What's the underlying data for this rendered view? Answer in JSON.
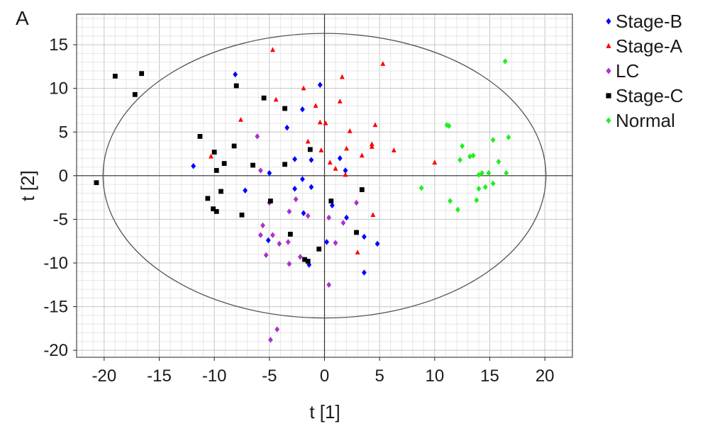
{
  "panel_label": "A",
  "chart_data": {
    "type": "scatter",
    "title": "",
    "xlabel": "t [1]",
    "ylabel": "t [2]",
    "xlim": [
      -22.5,
      22.5
    ],
    "ylim": [
      -20.8,
      18.5
    ],
    "xticks": [
      -20,
      -15,
      -10,
      -5,
      0,
      5,
      10,
      15,
      20
    ],
    "yticks": [
      15,
      10,
      5,
      0,
      -5,
      -10,
      -15,
      -20
    ],
    "grid": true,
    "legend_position": "right",
    "confidence_ellipse": {
      "rx": 20.1,
      "ry": 16.3
    },
    "series": [
      {
        "name": "Stage-B",
        "color": "#0000ff",
        "marker": "diamond",
        "points": [
          [
            -8.1,
            11.6
          ],
          [
            -0.4,
            10.4
          ],
          [
            -2.0,
            7.6
          ],
          [
            -3.4,
            5.5
          ],
          [
            -11.9,
            1.1
          ],
          [
            -2.7,
            1.9
          ],
          [
            -1.2,
            1.8
          ],
          [
            1.4,
            2.0
          ],
          [
            1.9,
            0.6
          ],
          [
            -5.0,
            0.3
          ],
          [
            -2.0,
            -0.4
          ],
          [
            -7.2,
            -1.7
          ],
          [
            -2.7,
            -1.5
          ],
          [
            -1.2,
            -1.3
          ],
          [
            -1.9,
            -4.3
          ],
          [
            0.7,
            -3.4
          ],
          [
            2.0,
            -4.8
          ],
          [
            -5.1,
            -7.4
          ],
          [
            0.2,
            -7.6
          ],
          [
            3.6,
            -7.0
          ],
          [
            4.8,
            -7.8
          ],
          [
            -1.4,
            -10.2
          ],
          [
            3.6,
            -11.1
          ]
        ]
      },
      {
        "name": "Stage-A",
        "color": "#ff0000",
        "marker": "triangle",
        "points": [
          [
            -4.7,
            14.4
          ],
          [
            5.3,
            12.8
          ],
          [
            1.6,
            11.3
          ],
          [
            -1.9,
            10.0
          ],
          [
            -4.4,
            8.7
          ],
          [
            -0.8,
            8.0
          ],
          [
            1.4,
            8.5
          ],
          [
            -7.6,
            6.4
          ],
          [
            -0.4,
            6.1
          ],
          [
            0.1,
            6.0
          ],
          [
            4.6,
            5.8
          ],
          [
            2.3,
            5.1
          ],
          [
            -1.5,
            3.9
          ],
          [
            4.3,
            3.6
          ],
          [
            4.3,
            3.3
          ],
          [
            6.3,
            2.9
          ],
          [
            2.0,
            3.1
          ],
          [
            -0.3,
            2.9
          ],
          [
            3.4,
            2.3
          ],
          [
            -10.3,
            2.2
          ],
          [
            0.5,
            1.5
          ],
          [
            1.0,
            0.8
          ],
          [
            10.0,
            1.5
          ],
          [
            1.9,
            0.1
          ],
          [
            4.4,
            -4.5
          ],
          [
            3.0,
            -8.8
          ]
        ]
      },
      {
        "name": "LC",
        "color": "#aa33cc",
        "marker": "diamond",
        "points": [
          [
            -6.1,
            4.5
          ],
          [
            -5.8,
            0.6
          ],
          [
            -5.0,
            -3.1
          ],
          [
            -2.6,
            -2.7
          ],
          [
            -3.2,
            -4.1
          ],
          [
            -1.5,
            -4.6
          ],
          [
            0.4,
            -4.8
          ],
          [
            1.7,
            -5.4
          ],
          [
            2.9,
            -3.1
          ],
          [
            -5.6,
            -5.7
          ],
          [
            -5.8,
            -6.8
          ],
          [
            -4.7,
            -6.8
          ],
          [
            -4.1,
            -7.8
          ],
          [
            -3.3,
            -7.6
          ],
          [
            1.0,
            -7.7
          ],
          [
            -5.3,
            -9.1
          ],
          [
            -2.2,
            -9.3
          ],
          [
            -3.2,
            -10.1
          ],
          [
            0.4,
            -12.5
          ],
          [
            -4.3,
            -17.6
          ],
          [
            -4.9,
            -18.8
          ]
        ]
      },
      {
        "name": "Stage-C",
        "color": "#000000",
        "marker": "square",
        "points": [
          [
            -19.0,
            11.4
          ],
          [
            -16.6,
            11.7
          ],
          [
            -17.2,
            9.3
          ],
          [
            -8.0,
            10.3
          ],
          [
            -5.5,
            8.9
          ],
          [
            -3.6,
            7.7
          ],
          [
            -11.3,
            4.5
          ],
          [
            -8.2,
            3.4
          ],
          [
            -10.0,
            2.7
          ],
          [
            -9.1,
            1.4
          ],
          [
            -6.5,
            1.2
          ],
          [
            -3.6,
            1.3
          ],
          [
            -1.3,
            3.0
          ],
          [
            -9.8,
            0.6
          ],
          [
            -20.7,
            -0.8
          ],
          [
            -9.4,
            -1.8
          ],
          [
            3.4,
            -1.6
          ],
          [
            -10.6,
            -2.6
          ],
          [
            -4.9,
            -2.9
          ],
          [
            0.6,
            -2.9
          ],
          [
            -10.1,
            -3.8
          ],
          [
            -9.8,
            -4.1
          ],
          [
            -7.5,
            -4.5
          ],
          [
            -3.1,
            -6.7
          ],
          [
            2.9,
            -6.5
          ],
          [
            -0.5,
            -8.4
          ],
          [
            -1.8,
            -9.6
          ],
          [
            -1.5,
            -9.8
          ]
        ]
      },
      {
        "name": "Normal",
        "color": "#22ee22",
        "marker": "diamond",
        "points": [
          [
            16.4,
            13.1
          ],
          [
            11.1,
            5.8
          ],
          [
            11.3,
            5.7
          ],
          [
            15.3,
            4.1
          ],
          [
            16.7,
            4.4
          ],
          [
            12.5,
            3.4
          ],
          [
            13.2,
            2.2
          ],
          [
            13.5,
            2.3
          ],
          [
            12.3,
            1.8
          ],
          [
            15.8,
            1.6
          ],
          [
            14.3,
            0.3
          ],
          [
            14.9,
            0.3
          ],
          [
            14.0,
            0.1
          ],
          [
            16.5,
            0.3
          ],
          [
            8.8,
            -1.4
          ],
          [
            15.3,
            -0.9
          ],
          [
            14.6,
            -1.3
          ],
          [
            14.0,
            -1.5
          ],
          [
            11.4,
            -2.9
          ],
          [
            13.8,
            -2.8
          ],
          [
            12.1,
            -3.9
          ]
        ]
      }
    ]
  }
}
